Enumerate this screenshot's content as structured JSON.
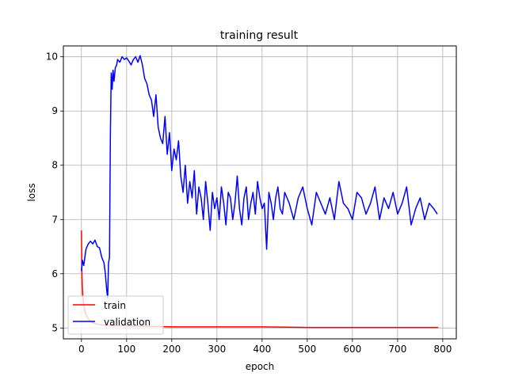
{
  "chart_data": {
    "type": "line",
    "title": "training result",
    "xlabel": "epoch",
    "ylabel": "loss",
    "xlim": [
      -40,
      830
    ],
    "ylim": [
      4.8,
      10.2
    ],
    "x_ticks": [
      0,
      100,
      200,
      300,
      400,
      500,
      600,
      700,
      800
    ],
    "y_ticks": [
      5,
      6,
      7,
      8,
      9,
      10
    ],
    "grid": true,
    "legend_position": "lower-left",
    "series": [
      {
        "name": "train",
        "color": "#ff0000",
        "x": [
          0,
          1,
          2,
          3,
          4,
          5,
          7,
          10,
          15,
          20,
          30,
          40,
          60,
          80,
          100,
          150,
          200,
          250,
          300,
          400,
          500,
          600,
          700,
          790
        ],
        "y": [
          6.8,
          6.0,
          5.75,
          5.6,
          5.5,
          5.42,
          5.33,
          5.25,
          5.17,
          5.12,
          5.08,
          5.06,
          5.05,
          5.04,
          5.04,
          5.03,
          5.02,
          5.02,
          5.02,
          5.02,
          5.01,
          5.01,
          5.01,
          5.01
        ]
      },
      {
        "name": "validation",
        "color": "#0000ff",
        "x": [
          0,
          2,
          5,
          10,
          15,
          20,
          25,
          30,
          35,
          40,
          45,
          50,
          53,
          56,
          58,
          60,
          62,
          64,
          66,
          68,
          70,
          72,
          75,
          78,
          80,
          85,
          90,
          95,
          100,
          105,
          110,
          115,
          120,
          125,
          130,
          135,
          140,
          145,
          150,
          155,
          160,
          165,
          170,
          175,
          180,
          185,
          190,
          195,
          200,
          205,
          210,
          215,
          220,
          225,
          230,
          235,
          240,
          245,
          250,
          255,
          260,
          265,
          270,
          275,
          280,
          285,
          290,
          295,
          300,
          305,
          310,
          315,
          320,
          325,
          330,
          335,
          340,
          345,
          350,
          355,
          360,
          365,
          370,
          375,
          380,
          385,
          390,
          395,
          400,
          405,
          410,
          415,
          420,
          425,
          430,
          435,
          440,
          445,
          450,
          460,
          470,
          480,
          490,
          500,
          510,
          520,
          530,
          540,
          550,
          560,
          570,
          580,
          590,
          600,
          610,
          620,
          630,
          640,
          650,
          660,
          670,
          680,
          690,
          700,
          710,
          720,
          730,
          740,
          750,
          760,
          770,
          780,
          788
        ],
        "y": [
          6.05,
          6.25,
          6.15,
          6.45,
          6.55,
          6.6,
          6.55,
          6.62,
          6.5,
          6.48,
          6.3,
          6.2,
          6.0,
          5.7,
          5.55,
          6.2,
          6.3,
          8.5,
          9.7,
          9.4,
          9.75,
          9.55,
          9.8,
          9.85,
          9.95,
          9.9,
          10.0,
          9.95,
          9.98,
          9.92,
          9.85,
          9.95,
          10.0,
          9.9,
          10.02,
          9.85,
          9.6,
          9.5,
          9.3,
          9.2,
          8.9,
          9.3,
          8.7,
          8.5,
          8.4,
          8.9,
          8.2,
          8.6,
          7.9,
          8.3,
          8.1,
          8.45,
          7.8,
          7.5,
          8.0,
          7.3,
          7.7,
          7.4,
          7.9,
          7.1,
          7.6,
          7.4,
          7.0,
          7.7,
          7.3,
          6.8,
          7.5,
          7.2,
          7.4,
          7.0,
          7.6,
          7.3,
          6.9,
          7.5,
          7.4,
          7.0,
          7.3,
          7.8,
          7.2,
          6.9,
          7.4,
          7.6,
          7.0,
          7.3,
          7.5,
          7.1,
          7.7,
          7.4,
          7.2,
          7.3,
          6.45,
          7.5,
          7.3,
          7.0,
          7.4,
          7.6,
          7.2,
          7.1,
          7.5,
          7.3,
          7.0,
          7.4,
          7.6,
          7.2,
          6.9,
          7.5,
          7.3,
          7.1,
          7.4,
          7.0,
          7.7,
          7.3,
          7.2,
          7.0,
          7.5,
          7.4,
          7.1,
          7.3,
          7.6,
          7.0,
          7.4,
          7.2,
          7.5,
          7.1,
          7.3,
          7.6,
          6.9,
          7.2,
          7.4,
          7.0,
          7.3,
          7.2,
          7.1
        ]
      }
    ]
  }
}
